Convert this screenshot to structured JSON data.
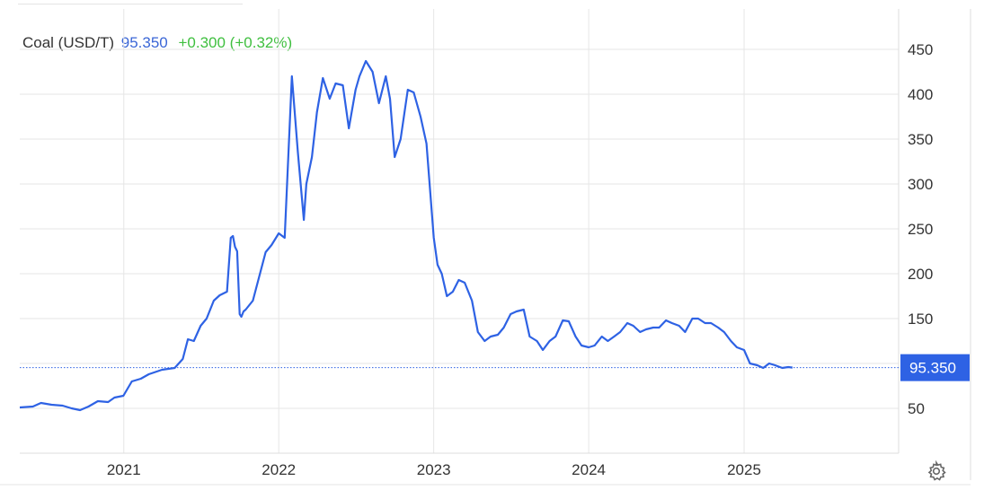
{
  "header": {
    "series_name": "Coal (USD/T)",
    "price": "95.350",
    "change": "+0.300 (+0.32%)"
  },
  "colors": {
    "line": "#2e62e4",
    "price_text": "#3a66d6",
    "change_text": "#3fbf3f",
    "grid": "#e6e6e6",
    "badge_bg": "#2e62e4"
  },
  "icons": {
    "settings": "gear-icon"
  },
  "chart_data": {
    "type": "line",
    "title": "",
    "xlabel": "",
    "ylabel": "",
    "y_axis_side": "right",
    "x_ticks": [
      "2021",
      "2022",
      "2023",
      "2024",
      "2025"
    ],
    "y_ticks": [
      50,
      100,
      150,
      200,
      250,
      300,
      350,
      400,
      450
    ],
    "y_tick_labels": [
      "50",
      "",
      "150",
      "200",
      "250",
      "300",
      "350",
      "400",
      "450"
    ],
    "xlim": [
      "2020-05-01",
      "2025-12-31"
    ],
    "ylim": [
      0,
      495
    ],
    "grid": true,
    "last_value": 95.35,
    "last_value_label": "95.350",
    "series": [
      {
        "x": [
          "2020-05-01",
          "2020-06-01",
          "2020-06-20",
          "2020-07-15",
          "2020-08-10",
          "2020-08-31",
          "2020-09-20",
          "2020-10-10",
          "2020-11-01",
          "2020-11-25",
          "2020-12-10",
          "2020-12-31",
          "2021-01-20",
          "2021-02-10",
          "2021-03-01",
          "2021-04-01",
          "2021-05-01",
          "2021-05-20",
          "2021-06-01",
          "2021-06-15",
          "2021-07-01",
          "2021-07-15",
          "2021-08-01",
          "2021-08-15",
          "2021-09-01",
          "2021-09-10",
          "2021-09-15",
          "2021-09-20",
          "2021-09-25",
          "2021-10-01",
          "2021-10-05",
          "2021-10-10",
          "2021-10-15",
          "2021-11-01",
          "2021-12-01",
          "2021-12-15",
          "2022-01-01",
          "2022-01-15",
          "2022-02-01",
          "2022-02-15",
          "2022-03-01",
          "2022-03-07",
          "2022-03-20",
          "2022-04-01",
          "2022-04-15",
          "2022-05-01",
          "2022-05-15",
          "2022-06-01",
          "2022-06-15",
          "2022-07-01",
          "2022-07-10",
          "2022-07-25",
          "2022-08-10",
          "2022-08-25",
          "2022-09-10",
          "2022-09-20",
          "2022-10-01",
          "2022-10-15",
          "2022-11-01",
          "2022-11-15",
          "2022-12-01",
          "2022-12-15",
          "2023-01-01",
          "2023-01-10",
          "2023-01-20",
          "2023-02-01",
          "2023-02-15",
          "2023-03-01",
          "2023-03-15",
          "2023-04-01",
          "2023-04-15",
          "2023-05-01",
          "2023-05-15",
          "2023-06-01",
          "2023-06-15",
          "2023-07-01",
          "2023-07-15",
          "2023-08-01",
          "2023-08-15",
          "2023-09-01",
          "2023-09-15",
          "2023-10-01",
          "2023-10-15",
          "2023-11-01",
          "2023-11-15",
          "2023-12-01",
          "2023-12-15",
          "2024-01-01",
          "2024-01-15",
          "2024-02-01",
          "2024-02-15",
          "2024-03-01",
          "2024-03-15",
          "2024-04-01",
          "2024-04-15",
          "2024-05-01",
          "2024-05-15",
          "2024-06-01",
          "2024-06-15",
          "2024-07-01",
          "2024-07-15",
          "2024-08-01",
          "2024-08-15",
          "2024-09-01",
          "2024-09-15",
          "2024-10-01",
          "2024-10-15",
          "2024-11-01",
          "2024-11-15",
          "2024-12-01",
          "2024-12-15",
          "2025-01-01",
          "2025-01-15",
          "2025-02-01",
          "2025-02-15",
          "2025-03-01",
          "2025-03-15",
          "2025-04-01",
          "2025-04-15",
          "2025-04-25"
        ],
        "values": [
          51,
          52,
          56,
          54,
          53,
          50,
          48,
          52,
          58,
          57,
          62,
          64,
          80,
          83,
          88,
          93,
          95,
          105,
          127,
          125,
          142,
          150,
          170,
          176,
          180,
          240,
          242,
          230,
          225,
          155,
          152,
          158,
          160,
          170,
          224,
          232,
          245,
          240,
          420,
          335,
          260,
          300,
          330,
          380,
          418,
          395,
          412,
          410,
          362,
          405,
          420,
          437,
          425,
          390,
          420,
          395,
          330,
          350,
          405,
          402,
          375,
          345,
          240,
          210,
          200,
          175,
          180,
          193,
          190,
          170,
          135,
          125,
          130,
          132,
          140,
          155,
          158,
          160,
          130,
          125,
          115,
          125,
          130,
          148,
          147,
          130,
          120,
          118,
          120,
          130,
          125,
          130,
          135,
          145,
          142,
          135,
          138,
          140,
          140,
          148,
          145,
          142,
          135,
          150,
          150,
          145,
          145,
          140,
          135,
          125,
          118,
          115,
          100,
          98,
          95,
          100,
          98,
          95,
          96,
          95.35
        ]
      }
    ]
  }
}
